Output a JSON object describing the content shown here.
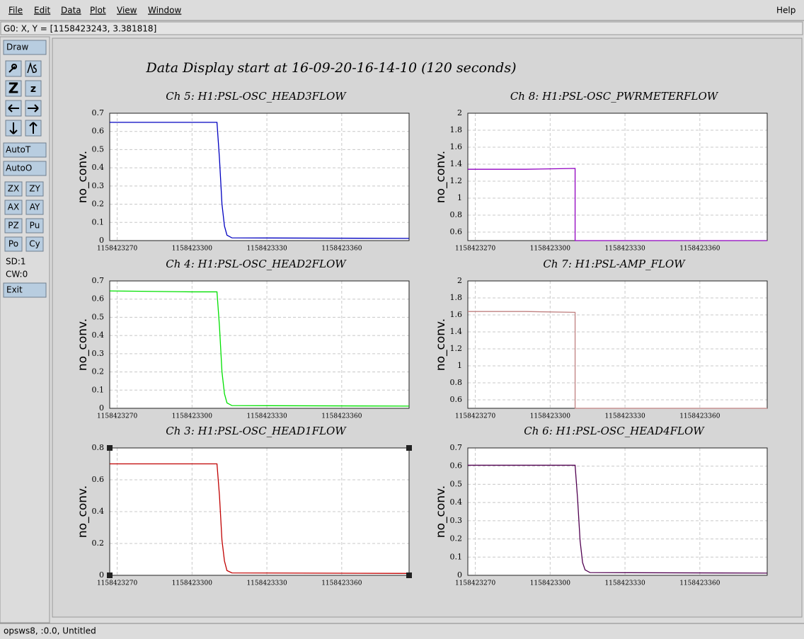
{
  "menu": [
    "File",
    "Edit",
    "Data",
    "Plot",
    "View",
    "Window"
  ],
  "help": "Help",
  "status_line": "G0: X, Y = [1158423243, 3.381818]",
  "toolbar": {
    "draw": "Draw",
    "zoom_icons": [
      "Z",
      "z"
    ],
    "buttons": [
      "AutoT",
      "AutoO",
      "ZX",
      "ZY",
      "AX",
      "AY",
      "PZ",
      "Pu",
      "Po",
      "Cy"
    ],
    "info": [
      "SD:1",
      "CW:0"
    ],
    "exit": "Exit"
  },
  "title": "Data Display start at 16-09-20-16-14-10 (120 seconds)",
  "footer": "opsws8, :0.0, Untitled",
  "chart_data": [
    {
      "type": "line",
      "title": "Ch 5: H1:PSL-OSC_HEAD3FLOW",
      "ylabel": "no_conv.",
      "color": "#0000c0",
      "grid": true,
      "x": [
        1158423267,
        1158423300,
        1158423310,
        1158423311,
        1158423312,
        1158423313,
        1158423314,
        1158423316,
        1158423387
      ],
      "values": [
        0.65,
        0.65,
        0.65,
        0.45,
        0.2,
        0.08,
        0.03,
        0.015,
        0.012
      ],
      "xlim": [
        1158423267,
        1158423387
      ],
      "ylim": [
        0,
        0.7
      ],
      "xticks": [
        1158423270,
        1158423300,
        1158423330,
        1158423360
      ],
      "yticks": [
        0,
        0.1,
        0.2,
        0.3,
        0.4,
        0.5,
        0.6,
        0.7
      ]
    },
    {
      "type": "line",
      "title": "Ch 8: H1:PSL-OSC_PWRMETERFLOW",
      "ylabel": "no_conv.",
      "color": "#9000c0",
      "grid": true,
      "x": [
        1158423267,
        1158423290,
        1158423310,
        1158423310,
        1158423387
      ],
      "values": [
        1.34,
        1.34,
        1.35,
        0.5,
        0.5
      ],
      "xlim": [
        1158423267,
        1158423387
      ],
      "ylim": [
        0.5,
        2
      ],
      "xticks": [
        1158423270,
        1158423300,
        1158423330,
        1158423360
      ],
      "yticks": [
        0.6,
        0.8,
        1,
        1.2,
        1.4,
        1.6,
        1.8,
        2
      ]
    },
    {
      "type": "line",
      "title": "Ch 4: H1:PSL-OSC_HEAD2FLOW",
      "ylabel": "no_conv.",
      "color": "#00e000",
      "grid": true,
      "x": [
        1158423267,
        1158423300,
        1158423310,
        1158423311,
        1158423312,
        1158423313,
        1158423314,
        1158423316,
        1158423387
      ],
      "values": [
        0.645,
        0.64,
        0.64,
        0.45,
        0.2,
        0.08,
        0.03,
        0.015,
        0.012
      ],
      "xlim": [
        1158423267,
        1158423387
      ],
      "ylim": [
        0,
        0.7
      ],
      "xticks": [
        1158423270,
        1158423300,
        1158423330,
        1158423360
      ],
      "yticks": [
        0,
        0.1,
        0.2,
        0.3,
        0.4,
        0.5,
        0.6,
        0.7
      ]
    },
    {
      "type": "line",
      "title": "Ch 7: H1:PSL-AMP_FLOW",
      "ylabel": "no_conv.",
      "color": "#c08080",
      "grid": true,
      "x": [
        1158423267,
        1158423290,
        1158423310,
        1158423310,
        1158423387
      ],
      "values": [
        1.64,
        1.64,
        1.63,
        0.5,
        0.5
      ],
      "xlim": [
        1158423267,
        1158423387
      ],
      "ylim": [
        0.5,
        2
      ],
      "xticks": [
        1158423270,
        1158423300,
        1158423330,
        1158423360
      ],
      "yticks": [
        0.6,
        0.8,
        1,
        1.2,
        1.4,
        1.6,
        1.8,
        2
      ]
    },
    {
      "type": "line",
      "title": "Ch 3: H1:PSL-OSC_HEAD1FLOW",
      "ylabel": "no_conv.",
      "color": "#c00000",
      "grid": true,
      "x": [
        1158423267,
        1158423300,
        1158423310,
        1158423311,
        1158423312,
        1158423313,
        1158423314,
        1158423316,
        1158423387
      ],
      "values": [
        0.7,
        0.7,
        0.7,
        0.5,
        0.22,
        0.09,
        0.03,
        0.015,
        0.012
      ],
      "xlim": [
        1158423267,
        1158423387
      ],
      "ylim": [
        0,
        0.8
      ],
      "xticks": [
        1158423270,
        1158423300,
        1158423330,
        1158423360
      ],
      "yticks": [
        0,
        0.2,
        0.4,
        0.6,
        0.8
      ]
    },
    {
      "type": "line",
      "title": "Ch 6: H1:PSL-OSC_HEAD4FLOW",
      "ylabel": "no_conv.",
      "color": "#500050",
      "grid": true,
      "x": [
        1158423267,
        1158423300,
        1158423310,
        1158423311,
        1158423312,
        1158423313,
        1158423314,
        1158423316,
        1158423387
      ],
      "values": [
        0.605,
        0.605,
        0.605,
        0.42,
        0.19,
        0.07,
        0.03,
        0.015,
        0.012
      ],
      "xlim": [
        1158423267,
        1158423387
      ],
      "ylim": [
        0,
        0.7
      ],
      "xticks": [
        1158423270,
        1158423300,
        1158423330,
        1158423360
      ],
      "yticks": [
        0,
        0.1,
        0.2,
        0.3,
        0.4,
        0.5,
        0.6,
        0.7
      ]
    }
  ]
}
